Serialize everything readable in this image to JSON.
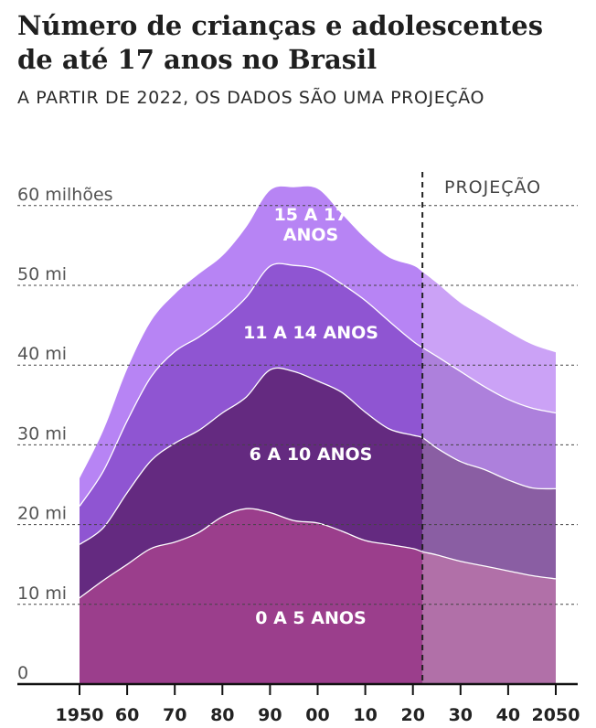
{
  "title": "Número de crianças e adolescentes de até 17 anos no Brasil",
  "subtitle": "A PARTIR DE 2022, OS DADOS SÃO UMA PROJEÇÃO",
  "projection_label": "PROJEÇÃO",
  "y_tick_labels": [
    "0",
    "10 mi",
    "20 mi",
    "30 mi",
    "40 mi",
    "50 mi",
    "60 milhões"
  ],
  "x_tick_labels": [
    "1950",
    "60",
    "70",
    "80",
    "90",
    "00",
    "10",
    "20",
    "30",
    "40",
    "2050"
  ],
  "colors": {
    "band_0_5": "#9b3e8c",
    "band_6_10": "#642a80",
    "band_11_14": "#8f55d2",
    "band_15_17": "#b784f4",
    "projection_0_5": "#b170a8",
    "projection_6_10": "#8a5ea3",
    "projection_11_14": "#ad80dc",
    "projection_15_17": "#cba2f6"
  },
  "chart_data": {
    "type": "area",
    "stacked": true,
    "title": "Número de crianças e adolescentes de até 17 anos no Brasil",
    "subtitle": "A PARTIR DE 2022, OS DADOS SÃO UMA PROJEÇÃO",
    "xlabel": "",
    "ylabel": "",
    "x": [
      1950,
      1955,
      1960,
      1965,
      1970,
      1975,
      1980,
      1985,
      1990,
      1995,
      2000,
      2005,
      2010,
      2015,
      2020,
      2022,
      2025,
      2030,
      2035,
      2040,
      2045,
      2050
    ],
    "projection_start": 2022,
    "xlim": [
      1950,
      2050
    ],
    "ylim": [
      0,
      60
    ],
    "y_unit": "milhões",
    "grid": true,
    "series": [
      {
        "name": "0 A 5 ANOS",
        "values": [
          10.8,
          13.0,
          15.0,
          17.0,
          17.8,
          19.0,
          21.0,
          22.0,
          21.5,
          20.5,
          20.2,
          19.2,
          18.0,
          17.5,
          17.0,
          16.6,
          16.2,
          15.4,
          14.8,
          14.2,
          13.6,
          13.2
        ]
      },
      {
        "name": "6 A 10 ANOS",
        "values": [
          6.7,
          6.6,
          9.0,
          11.0,
          12.4,
          12.8,
          13.0,
          14.0,
          17.9,
          18.7,
          17.8,
          17.4,
          16.1,
          14.5,
          14.2,
          14.3,
          13.4,
          12.5,
          12.1,
          11.4,
          11.0,
          11.3
        ]
      },
      {
        "name": "11 A 14 ANOS",
        "values": [
          4.8,
          7.1,
          9.0,
          10.5,
          11.5,
          11.7,
          11.7,
          12.5,
          13.0,
          13.3,
          14.0,
          13.6,
          14.0,
          13.5,
          11.8,
          11.3,
          11.5,
          11.3,
          10.4,
          10.1,
          10.0,
          9.5
        ]
      },
      {
        "name": "15 A 17 ANOS",
        "values": [
          3.5,
          5.1,
          6.5,
          7.0,
          7.2,
          7.9,
          8.0,
          8.8,
          9.5,
          9.8,
          10.1,
          8.8,
          7.8,
          8.0,
          9.5,
          9.5,
          9.2,
          8.6,
          8.7,
          8.5,
          8.0,
          7.6
        ]
      }
    ],
    "annotations": [
      "PROJEÇÃO"
    ]
  }
}
